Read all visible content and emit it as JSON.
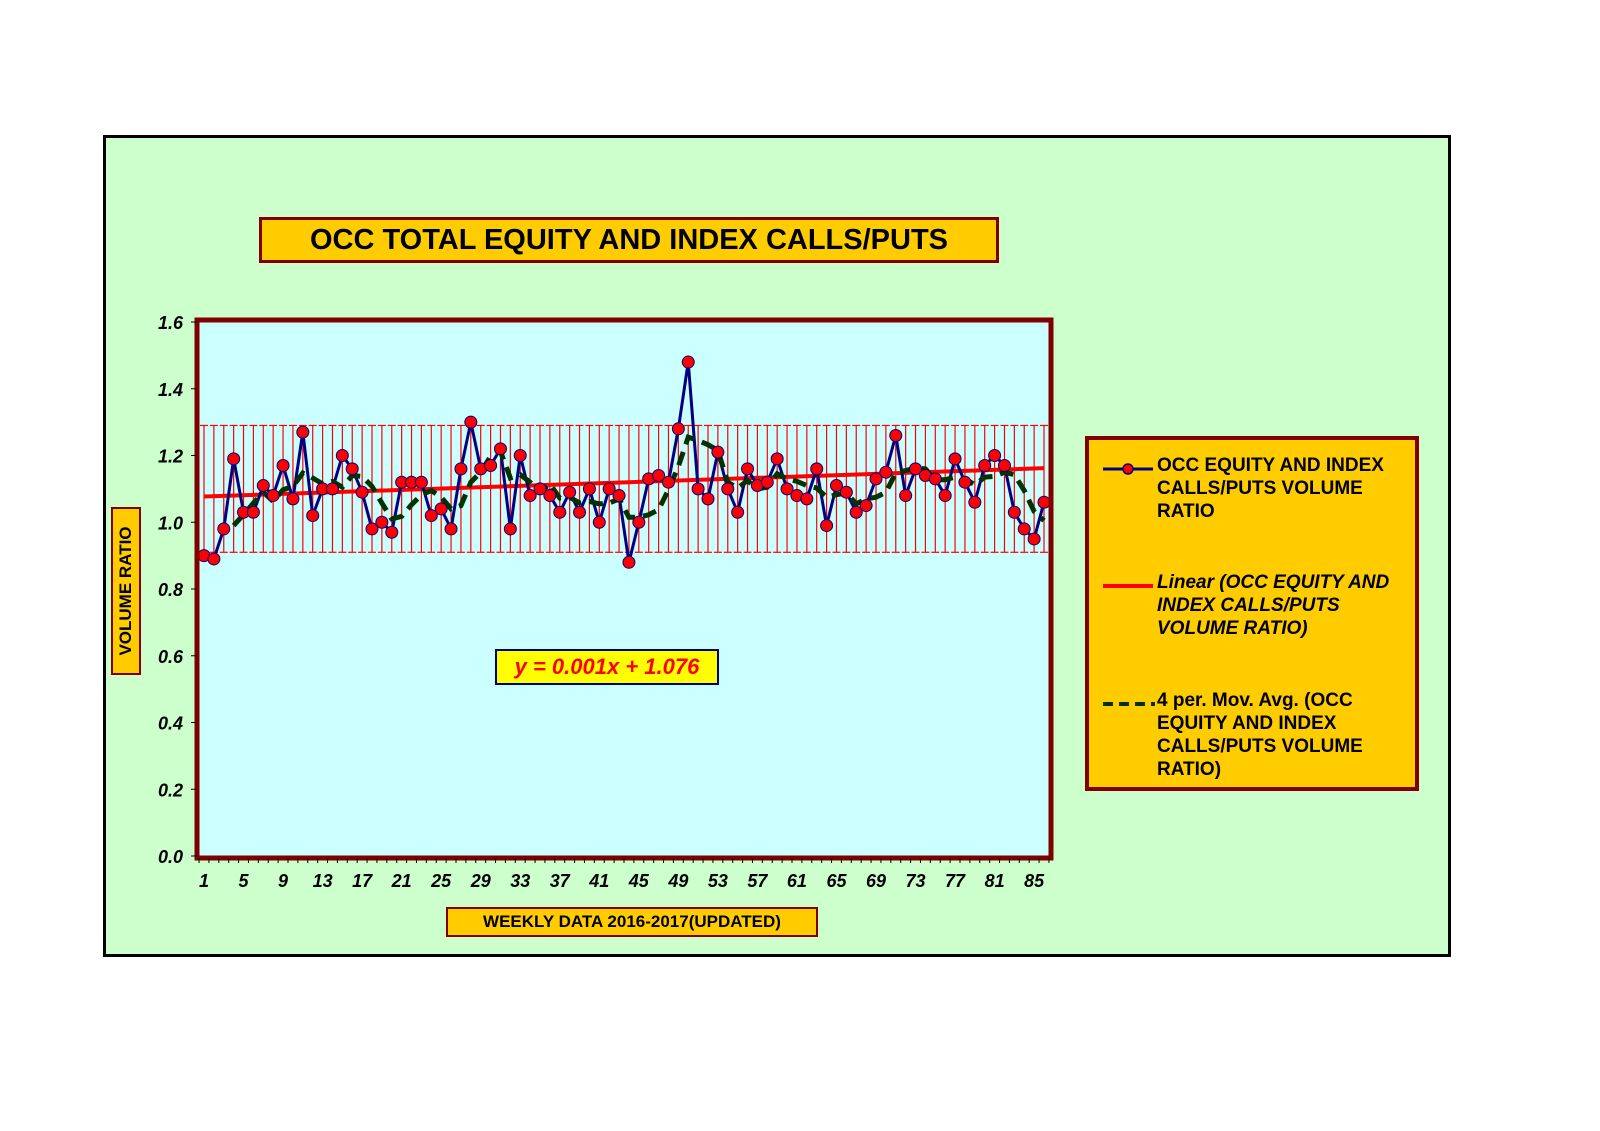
{
  "chart_data": {
    "type": "line",
    "title": "OCC TOTAL EQUITY AND INDEX CALLS/PUTS",
    "xlabel": "WEEKLY DATA 2016-2017(UPDATED)",
    "ylabel": "VOLUME RATIO",
    "ylim": [
      0.0,
      1.6
    ],
    "yticks": [
      "0.0",
      "0.2",
      "0.4",
      "0.6",
      "0.8",
      "1.0",
      "1.2",
      "1.4",
      "1.6"
    ],
    "xticks": [
      "1",
      "5",
      "9",
      "13",
      "17",
      "21",
      "25",
      "29",
      "33",
      "37",
      "41",
      "45",
      "49",
      "53",
      "57",
      "61",
      "65",
      "69",
      "73",
      "77",
      "81",
      "85"
    ],
    "x_range": [
      1,
      86
    ],
    "grid": false,
    "legend_position": "right",
    "trendline_equation": "y = 0.001x + 1.076",
    "trendline": {
      "slope": 0.001,
      "intercept": 1.076
    },
    "error_band": {
      "low": 0.91,
      "high": 1.29
    },
    "series": [
      {
        "name": "OCC EQUITY AND INDEX CALLS/PUTS VOLUME RATIO",
        "values": [
          0.9,
          0.89,
          0.98,
          1.19,
          1.03,
          1.03,
          1.11,
          1.08,
          1.17,
          1.07,
          1.27,
          1.02,
          1.1,
          1.1,
          1.2,
          1.16,
          1.09,
          0.98,
          1.0,
          0.97,
          1.12,
          1.12,
          1.12,
          1.02,
          1.04,
          0.98,
          1.16,
          1.3,
          1.16,
          1.17,
          1.22,
          0.98,
          1.2,
          1.08,
          1.1,
          1.08,
          1.03,
          1.09,
          1.03,
          1.1,
          1.0,
          1.1,
          1.08,
          0.88,
          1.0,
          1.13,
          1.14,
          1.12,
          1.28,
          1.48,
          1.1,
          1.07,
          1.21,
          1.1,
          1.03,
          1.16,
          1.11,
          1.12,
          1.19,
          1.1,
          1.08,
          1.07,
          1.16,
          0.99,
          1.11,
          1.09,
          1.03,
          1.05,
          1.13,
          1.15,
          1.26,
          1.08,
          1.16,
          1.14,
          1.13,
          1.08,
          1.19,
          1.12,
          1.06,
          1.17,
          1.2,
          1.17,
          1.03,
          0.98,
          0.95,
          1.06
        ]
      },
      {
        "name": "Linear (OCC EQUITY AND INDEX CALLS/PUTS VOLUME RATIO)",
        "type": "trendline"
      },
      {
        "name": "4 per. Mov. Avg. (OCC EQUITY AND INDEX CALLS/PUTS VOLUME RATIO)",
        "type": "moving_average",
        "period": 4
      }
    ],
    "colors": {
      "series_line": "#000080",
      "marker": "#ff0000",
      "trendline": "#ff0000",
      "moving_avg": "#003300",
      "error_bars": "#ff0000",
      "plot_bg": "#ccffff",
      "chart_bg": "#ccffcc",
      "box_fill": "#ffcc00",
      "border": "#800000"
    }
  },
  "legend": {
    "items": [
      {
        "label": "OCC EQUITY AND INDEX CALLS/PUTS VOLUME RATIO"
      },
      {
        "label": "Linear (OCC EQUITY AND INDEX CALLS/PUTS VOLUME RATIO)"
      },
      {
        "label": "4 per. Mov. Avg. (OCC EQUITY AND INDEX CALLS/PUTS VOLUME RATIO)"
      }
    ]
  }
}
